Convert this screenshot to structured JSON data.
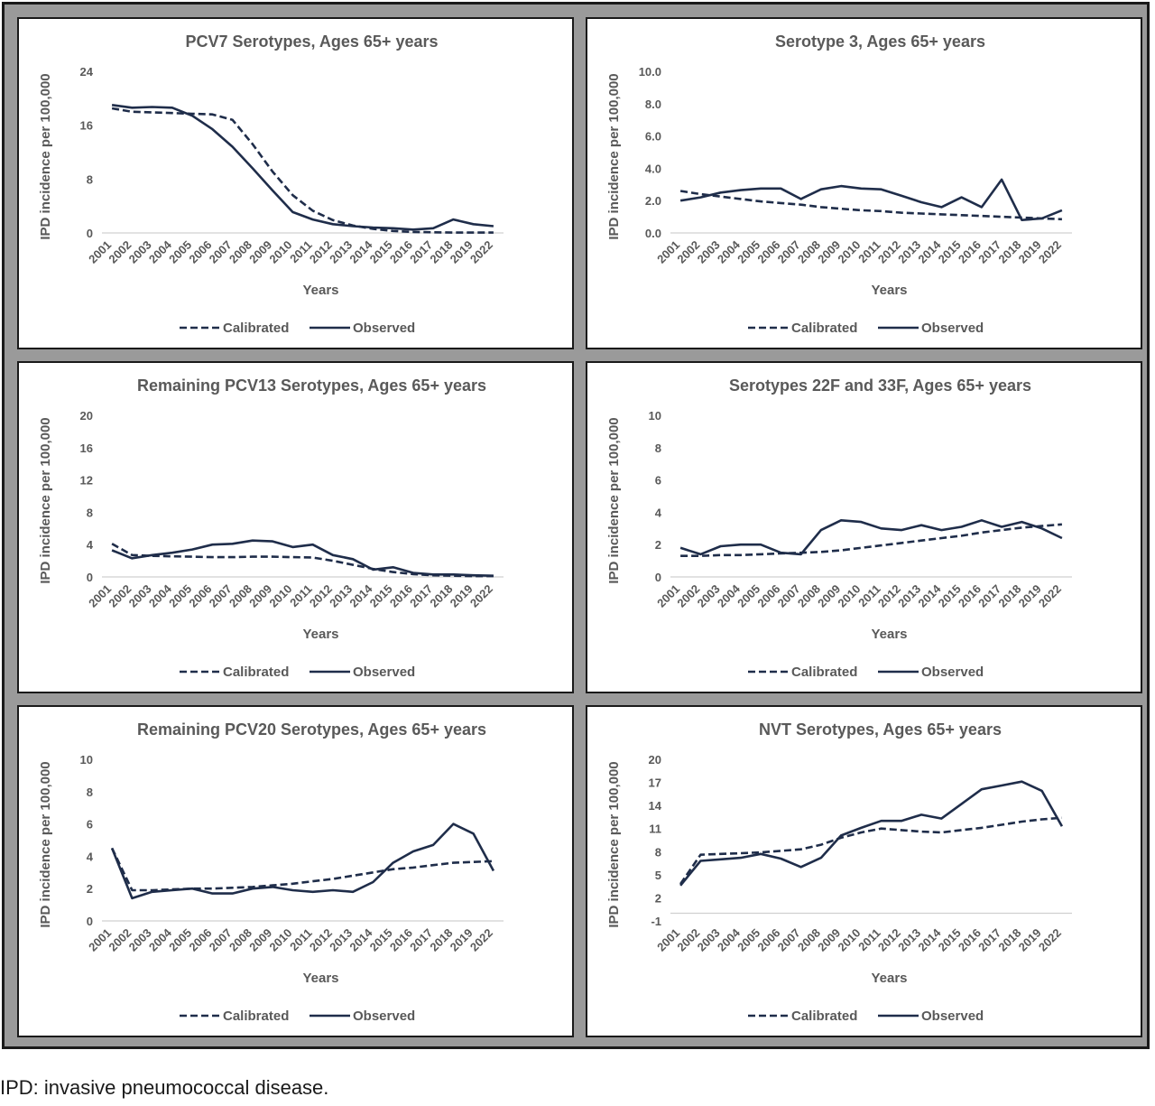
{
  "caption": "IPD: invasive pneumococcal disease.",
  "colors": {
    "line": "#1f2d4a",
    "frame": "#9a9a9a",
    "text": "#595959"
  },
  "chart_data": [
    {
      "type": "line",
      "title": "PCV7 Serotypes, Ages 65+ years",
      "xlabel": "Years",
      "ylabel": "IPD incidence per 100,000",
      "x": [
        "2001",
        "2002",
        "2003",
        "2004",
        "2005",
        "2006",
        "2007",
        "2008",
        "2009",
        "2010",
        "2011",
        "2012",
        "2013",
        "2014",
        "2015",
        "2016",
        "2017",
        "2018",
        "2019",
        "2022"
      ],
      "yticks": [
        "0",
        "8",
        "16",
        "24"
      ],
      "ylim": [
        0,
        24
      ],
      "legend": "bottom",
      "series": [
        {
          "name": "Calibrated",
          "style": "dashed",
          "values": [
            18.5,
            18.0,
            17.9,
            17.8,
            17.7,
            17.6,
            16.8,
            13.2,
            9.1,
            5.6,
            3.3,
            1.9,
            1.1,
            0.6,
            0.3,
            0.15,
            0.1,
            0.05,
            0.05,
            0.05
          ]
        },
        {
          "name": "Observed",
          "style": "solid",
          "values": [
            19.0,
            18.6,
            18.7,
            18.6,
            17.4,
            15.4,
            12.8,
            9.6,
            6.3,
            3.1,
            2.0,
            1.3,
            1.0,
            0.8,
            0.7,
            0.5,
            0.7,
            2.0,
            1.3,
            1.0
          ]
        }
      ]
    },
    {
      "type": "line",
      "title": "Serotype 3, Ages 65+ years",
      "xlabel": "Years",
      "ylabel": "IPD incidence per 100,000",
      "x": [
        "2001",
        "2002",
        "2003",
        "2004",
        "2005",
        "2006",
        "2007",
        "2008",
        "2009",
        "2010",
        "2011",
        "2012",
        "2013",
        "2014",
        "2015",
        "2016",
        "2017",
        "2018",
        "2019",
        "2022"
      ],
      "yticks": [
        "0.0",
        "2.0",
        "4.0",
        "6.0",
        "8.0",
        "10.0"
      ],
      "ylim": [
        0,
        10
      ],
      "legend": "bottom",
      "series": [
        {
          "name": "Calibrated",
          "style": "dashed",
          "values": [
            2.6,
            2.4,
            2.25,
            2.1,
            1.95,
            1.85,
            1.75,
            1.6,
            1.5,
            1.4,
            1.35,
            1.25,
            1.2,
            1.15,
            1.1,
            1.05,
            1.0,
            0.95,
            0.9,
            0.85
          ]
        },
        {
          "name": "Observed",
          "style": "solid",
          "values": [
            2.0,
            2.2,
            2.5,
            2.65,
            2.75,
            2.75,
            2.1,
            2.7,
            2.9,
            2.75,
            2.7,
            2.3,
            1.9,
            1.6,
            2.2,
            1.6,
            3.3,
            0.8,
            0.9,
            1.4
          ]
        }
      ]
    },
    {
      "type": "line",
      "title": "Remaining PCV13 Serotypes, Ages 65+ years",
      "xlabel": "Years",
      "ylabel": "IPD incidence per 100,000",
      "x": [
        "2001",
        "2002",
        "2003",
        "2004",
        "2005",
        "2006",
        "2007",
        "2008",
        "2009",
        "2010",
        "2011",
        "2012",
        "2013",
        "2014",
        "2015",
        "2016",
        "2017",
        "2018",
        "2019",
        "2022"
      ],
      "yticks": [
        "0",
        "4",
        "8",
        "12",
        "16",
        "20"
      ],
      "ylim": [
        0,
        20
      ],
      "legend": "bottom",
      "series": [
        {
          "name": "Calibrated",
          "style": "dashed",
          "values": [
            4.1,
            2.7,
            2.6,
            2.55,
            2.5,
            2.45,
            2.45,
            2.5,
            2.5,
            2.45,
            2.4,
            2.0,
            1.5,
            1.0,
            0.6,
            0.35,
            0.2,
            0.15,
            0.1,
            0.1
          ]
        },
        {
          "name": "Observed",
          "style": "solid",
          "values": [
            3.3,
            2.3,
            2.7,
            3.0,
            3.4,
            4.0,
            4.1,
            4.5,
            4.4,
            3.7,
            4.0,
            2.7,
            2.2,
            0.9,
            1.2,
            0.5,
            0.3,
            0.3,
            0.2,
            0.15
          ]
        }
      ]
    },
    {
      "type": "line",
      "title": "Serotypes 22F and 33F, Ages 65+ years",
      "xlabel": "Years",
      "ylabel": "IPD incidence per 100,000",
      "x": [
        "2001",
        "2002",
        "2003",
        "2004",
        "2005",
        "2006",
        "2007",
        "2008",
        "2009",
        "2010",
        "2011",
        "2012",
        "2013",
        "2014",
        "2015",
        "2016",
        "2017",
        "2018",
        "2019",
        "2022"
      ],
      "yticks": [
        "0",
        "2",
        "4",
        "6",
        "8",
        "10"
      ],
      "ylim": [
        0,
        10
      ],
      "legend": "bottom",
      "series": [
        {
          "name": "Calibrated",
          "style": "dashed",
          "values": [
            1.3,
            1.3,
            1.35,
            1.35,
            1.4,
            1.45,
            1.5,
            1.55,
            1.65,
            1.8,
            1.95,
            2.1,
            2.25,
            2.4,
            2.55,
            2.75,
            2.9,
            3.05,
            3.15,
            3.25
          ]
        },
        {
          "name": "Observed",
          "style": "solid",
          "values": [
            1.8,
            1.4,
            1.9,
            2.0,
            2.0,
            1.5,
            1.4,
            2.9,
            3.5,
            3.4,
            3.0,
            2.9,
            3.2,
            2.9,
            3.1,
            3.5,
            3.1,
            3.4,
            3.0,
            2.4
          ]
        }
      ]
    },
    {
      "type": "line",
      "title": "Remaining PCV20 Serotypes, Ages 65+ years",
      "xlabel": "Years",
      "ylabel": "IPD incidence per 100,000",
      "x": [
        "2001",
        "2002",
        "2003",
        "2004",
        "2005",
        "2006",
        "2007",
        "2008",
        "2009",
        "2010",
        "2011",
        "2012",
        "2013",
        "2014",
        "2015",
        "2016",
        "2017",
        "2018",
        "2019",
        "2022"
      ],
      "yticks": [
        "0",
        "2",
        "4",
        "6",
        "8",
        "10"
      ],
      "ylim": [
        0,
        10
      ],
      "legend": "bottom",
      "series": [
        {
          "name": "Calibrated",
          "style": "dashed",
          "values": [
            4.5,
            1.9,
            1.9,
            1.95,
            2.0,
            2.0,
            2.05,
            2.1,
            2.2,
            2.3,
            2.45,
            2.6,
            2.8,
            3.0,
            3.2,
            3.3,
            3.45,
            3.6,
            3.65,
            3.7
          ]
        },
        {
          "name": "Observed",
          "style": "solid",
          "values": [
            4.5,
            1.4,
            1.8,
            1.9,
            2.0,
            1.7,
            1.7,
            2.0,
            2.1,
            1.9,
            1.8,
            1.9,
            1.8,
            2.4,
            3.6,
            4.3,
            4.7,
            6.0,
            5.4,
            3.1
          ]
        }
      ]
    },
    {
      "type": "line",
      "title": "NVT Serotypes, Ages 65+ years",
      "xlabel": "Years",
      "ylabel": "IPD incidence per 100,000",
      "x": [
        "2001",
        "2002",
        "2003",
        "2004",
        "2005",
        "2006",
        "2007",
        "2008",
        "2009",
        "2010",
        "2011",
        "2012",
        "2013",
        "2014",
        "2015",
        "2016",
        "2017",
        "2018",
        "2019",
        "2022"
      ],
      "yticks": [
        "-1",
        "2",
        "5",
        "8",
        "11",
        "14",
        "17",
        "20"
      ],
      "ylim": [
        -1,
        20
      ],
      "legend": "bottom",
      "series": [
        {
          "name": "Calibrated",
          "style": "dashed",
          "values": [
            3.8,
            7.6,
            7.7,
            7.8,
            7.9,
            8.1,
            8.3,
            8.9,
            9.8,
            10.5,
            11.0,
            10.8,
            10.6,
            10.5,
            10.8,
            11.1,
            11.5,
            11.9,
            12.2,
            12.4
          ]
        },
        {
          "name": "Observed",
          "style": "solid",
          "values": [
            3.6,
            6.8,
            7.0,
            7.2,
            7.7,
            7.1,
            6.0,
            7.2,
            10.1,
            11.1,
            12.0,
            12.0,
            12.8,
            12.3,
            14.2,
            16.1,
            16.6,
            17.1,
            15.9,
            11.3
          ]
        }
      ]
    }
  ]
}
